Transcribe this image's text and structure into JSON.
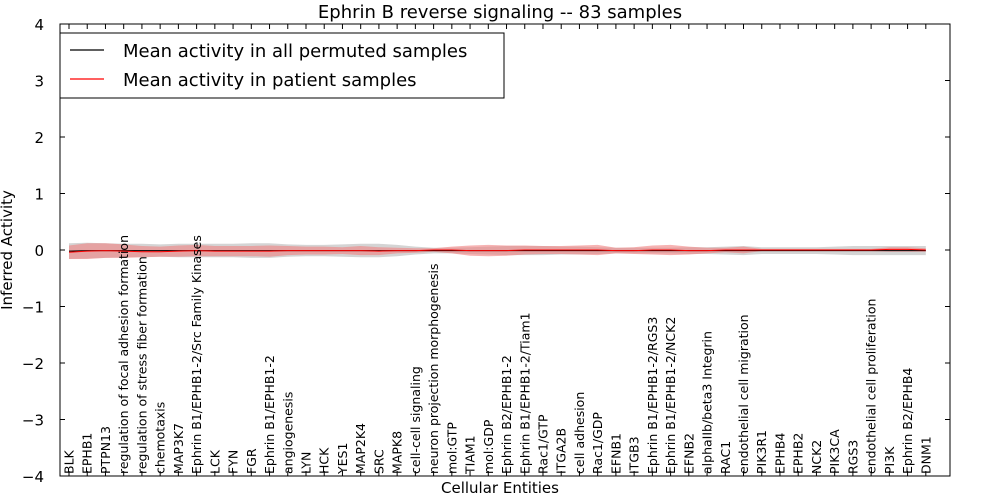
{
  "chart_data": {
    "type": "line",
    "title": "Ephrin B reverse signaling -- 83 samples",
    "xlabel": "Cellular Entities",
    "ylabel": "Inferred Activity",
    "ylim": [
      -4,
      4
    ],
    "yticks": [
      4,
      3,
      2,
      1,
      0,
      -1,
      -2,
      -3,
      -4
    ],
    "grid": false,
    "legend_position": "top-left",
    "categories": [
      "BLK",
      "EPHB1",
      "PTPN13",
      "regulation of focal adhesion formation",
      "regulation of stress fiber formation",
      "chemotaxis",
      "MAP3K7",
      "Ephrin B1/EPHB1-2/Src Family Kinases",
      "LCK",
      "FYN",
      "FGR",
      "Ephrin B1/EPHB1-2",
      "angiogenesis",
      "LYN",
      "HCK",
      "YES1",
      "MAP2K4",
      "SRC",
      "MAPK8",
      "cell-cell signaling",
      "neuron projection morphogenesis",
      "mol:GTP",
      "TIAM1",
      "mol:GDP",
      "Ephrin B2/EPHB1-2",
      "Ephrin B1/EPHB1-2/Tiam1",
      "Rac1/GTP",
      "ITGA2B",
      "cell adhesion",
      "Rac1/GDP",
      "EFNB1",
      "ITGB3",
      "Ephrin B1/EPHB1-2/RGS3",
      "Ephrin B1/EPHB1-2/NCK2",
      "EFNB2",
      "alphaIIb/beta3 Integrin",
      "RAC1",
      "endothelial cell migration",
      "PIK3R1",
      "EPHB4",
      "EPHB2",
      "NCK2",
      "PIK3CA",
      "RGS3",
      "endothelial cell proliferation",
      "PI3K",
      "Ephrin B2/EPHB4",
      "DNM1"
    ],
    "series": [
      {
        "name": "Mean activity in all permuted samples",
        "color": "#000000",
        "band_color": "#b0b0b0",
        "values": [
          -0.02,
          -0.01,
          -0.01,
          -0.01,
          -0.01,
          -0.01,
          -0.01,
          -0.01,
          -0.01,
          -0.01,
          -0.01,
          -0.01,
          -0.01,
          -0.01,
          -0.01,
          -0.01,
          -0.01,
          -0.01,
          -0.01,
          -0.01,
          -0.01,
          -0.01,
          -0.01,
          -0.01,
          -0.01,
          -0.01,
          -0.01,
          -0.01,
          -0.01,
          -0.01,
          -0.01,
          -0.01,
          -0.01,
          -0.01,
          -0.01,
          -0.01,
          -0.01,
          -0.01,
          -0.01,
          -0.01,
          -0.01,
          -0.01,
          -0.01,
          -0.01,
          -0.01,
          -0.01,
          -0.01,
          -0.01
        ],
        "band": [
          0.14,
          0.14,
          0.13,
          0.12,
          0.12,
          0.11,
          0.12,
          0.12,
          0.12,
          0.12,
          0.13,
          0.13,
          0.11,
          0.1,
          0.1,
          0.11,
          0.12,
          0.12,
          0.1,
          0.07,
          0.05,
          0.05,
          0.06,
          0.07,
          0.08,
          0.08,
          0.08,
          0.07,
          0.07,
          0.06,
          0.05,
          0.05,
          0.05,
          0.05,
          0.06,
          0.06,
          0.07,
          0.08,
          0.06,
          0.06,
          0.06,
          0.06,
          0.07,
          0.08,
          0.08,
          0.08,
          0.08,
          0.08
        ]
      },
      {
        "name": "Mean activity in patient samples",
        "color": "#ff0000",
        "band_color": "#f08080",
        "values": [
          -0.04,
          -0.02,
          -0.01,
          -0.02,
          -0.03,
          -0.03,
          -0.02,
          -0.01,
          -0.02,
          -0.02,
          -0.02,
          -0.02,
          -0.01,
          -0.01,
          -0.01,
          -0.01,
          -0.01,
          -0.02,
          -0.01,
          -0.01,
          0.0,
          0.0,
          -0.01,
          -0.01,
          -0.01,
          0.0,
          0.0,
          0.0,
          0.0,
          0.0,
          -0.01,
          -0.01,
          0.0,
          0.0,
          -0.01,
          -0.01,
          0.0,
          0.0,
          0.0,
          0.0,
          0.0,
          0.0,
          0.0,
          0.0,
          0.0,
          0.01,
          0.01,
          0.0
        ],
        "band": [
          0.12,
          0.14,
          0.13,
          0.12,
          0.1,
          0.09,
          0.1,
          0.1,
          0.09,
          0.09,
          0.09,
          0.1,
          0.08,
          0.07,
          0.07,
          0.06,
          0.08,
          0.07,
          0.05,
          0.04,
          0.03,
          0.06,
          0.09,
          0.1,
          0.09,
          0.08,
          0.07,
          0.07,
          0.08,
          0.09,
          0.05,
          0.06,
          0.08,
          0.09,
          0.07,
          0.05,
          0.04,
          0.06,
          0.02,
          0.02,
          0.02,
          0.02,
          0.02,
          0.02,
          0.02,
          0.04,
          0.04,
          0.03
        ]
      }
    ]
  }
}
